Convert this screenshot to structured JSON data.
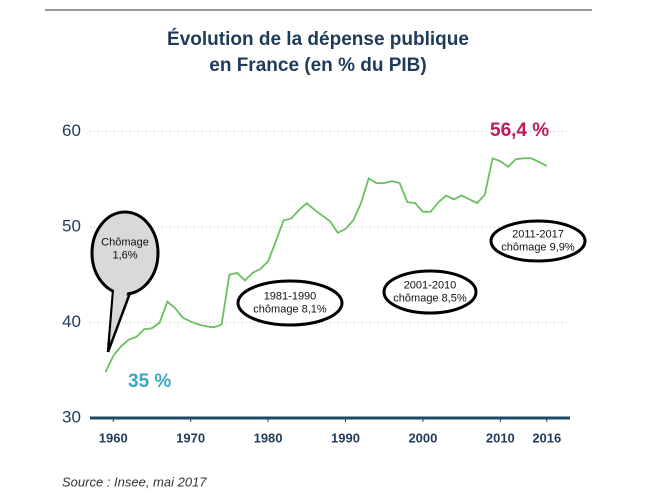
{
  "chart_data": {
    "type": "line",
    "title": [
      "Évolution de la dépense publique",
      "en France (en % du PIB)"
    ],
    "x": [
      1959,
      1960,
      1961,
      1962,
      1963,
      1964,
      1965,
      1966,
      1967,
      1968,
      1969,
      1970,
      1971,
      1972,
      1973,
      1974,
      1975,
      1976,
      1977,
      1978,
      1979,
      1980,
      1981,
      1982,
      1983,
      1984,
      1985,
      1986,
      1987,
      1988,
      1989,
      1990,
      1991,
      1992,
      1993,
      1994,
      1995,
      1996,
      1997,
      1998,
      1999,
      2000,
      2001,
      2002,
      2003,
      2004,
      2005,
      2006,
      2007,
      2008,
      2009,
      2010,
      2011,
      2012,
      2013,
      2014,
      2015,
      2016
    ],
    "series": [
      {
        "color": "#6abf5e",
        "values": [
          34.8,
          36.5,
          37.5,
          38.2,
          38.5,
          39.3,
          39.4,
          40.0,
          42.2,
          41.5,
          40.5,
          40.1,
          39.8,
          39.6,
          39.5,
          39.8,
          45.0,
          45.2,
          44.4,
          45.2,
          45.6,
          46.4,
          48.5,
          50.7,
          50.9,
          51.8,
          52.5,
          51.8,
          51.2,
          50.6,
          49.4,
          49.8,
          50.7,
          52.5,
          55.1,
          54.6,
          54.6,
          54.8,
          54.6,
          52.6,
          52.5,
          51.6,
          51.6,
          52.6,
          53.3,
          52.9,
          53.3,
          52.9,
          52.5,
          53.4,
          57.2,
          56.9,
          56.3,
          57.1,
          57.2,
          57.2,
          56.8,
          56.4
        ]
      }
    ],
    "xlim": [
      1957,
      2019
    ],
    "xticks": [
      1960,
      1970,
      1980,
      1990,
      2000,
      2010,
      2016
    ],
    "ylim": [
      30,
      61
    ],
    "yticks": [
      30,
      40,
      50,
      60
    ],
    "grid": true,
    "annotations": [
      {
        "text": "35 %",
        "color": "#3aa7c0"
      },
      {
        "text": "56,4 %",
        "color": "#c2185b"
      }
    ],
    "bubbles": [
      {
        "lines": [
          "Chômage",
          "1,6%"
        ]
      },
      {
        "lines": [
          "1981-1990",
          "chômage 8,1%"
        ]
      },
      {
        "lines": [
          "2001-2010",
          "chômage 8,5%"
        ]
      },
      {
        "lines": [
          "2011-2017",
          "chômage 9,9%"
        ]
      }
    ],
    "source": "Source : Insee, mai 2017"
  }
}
